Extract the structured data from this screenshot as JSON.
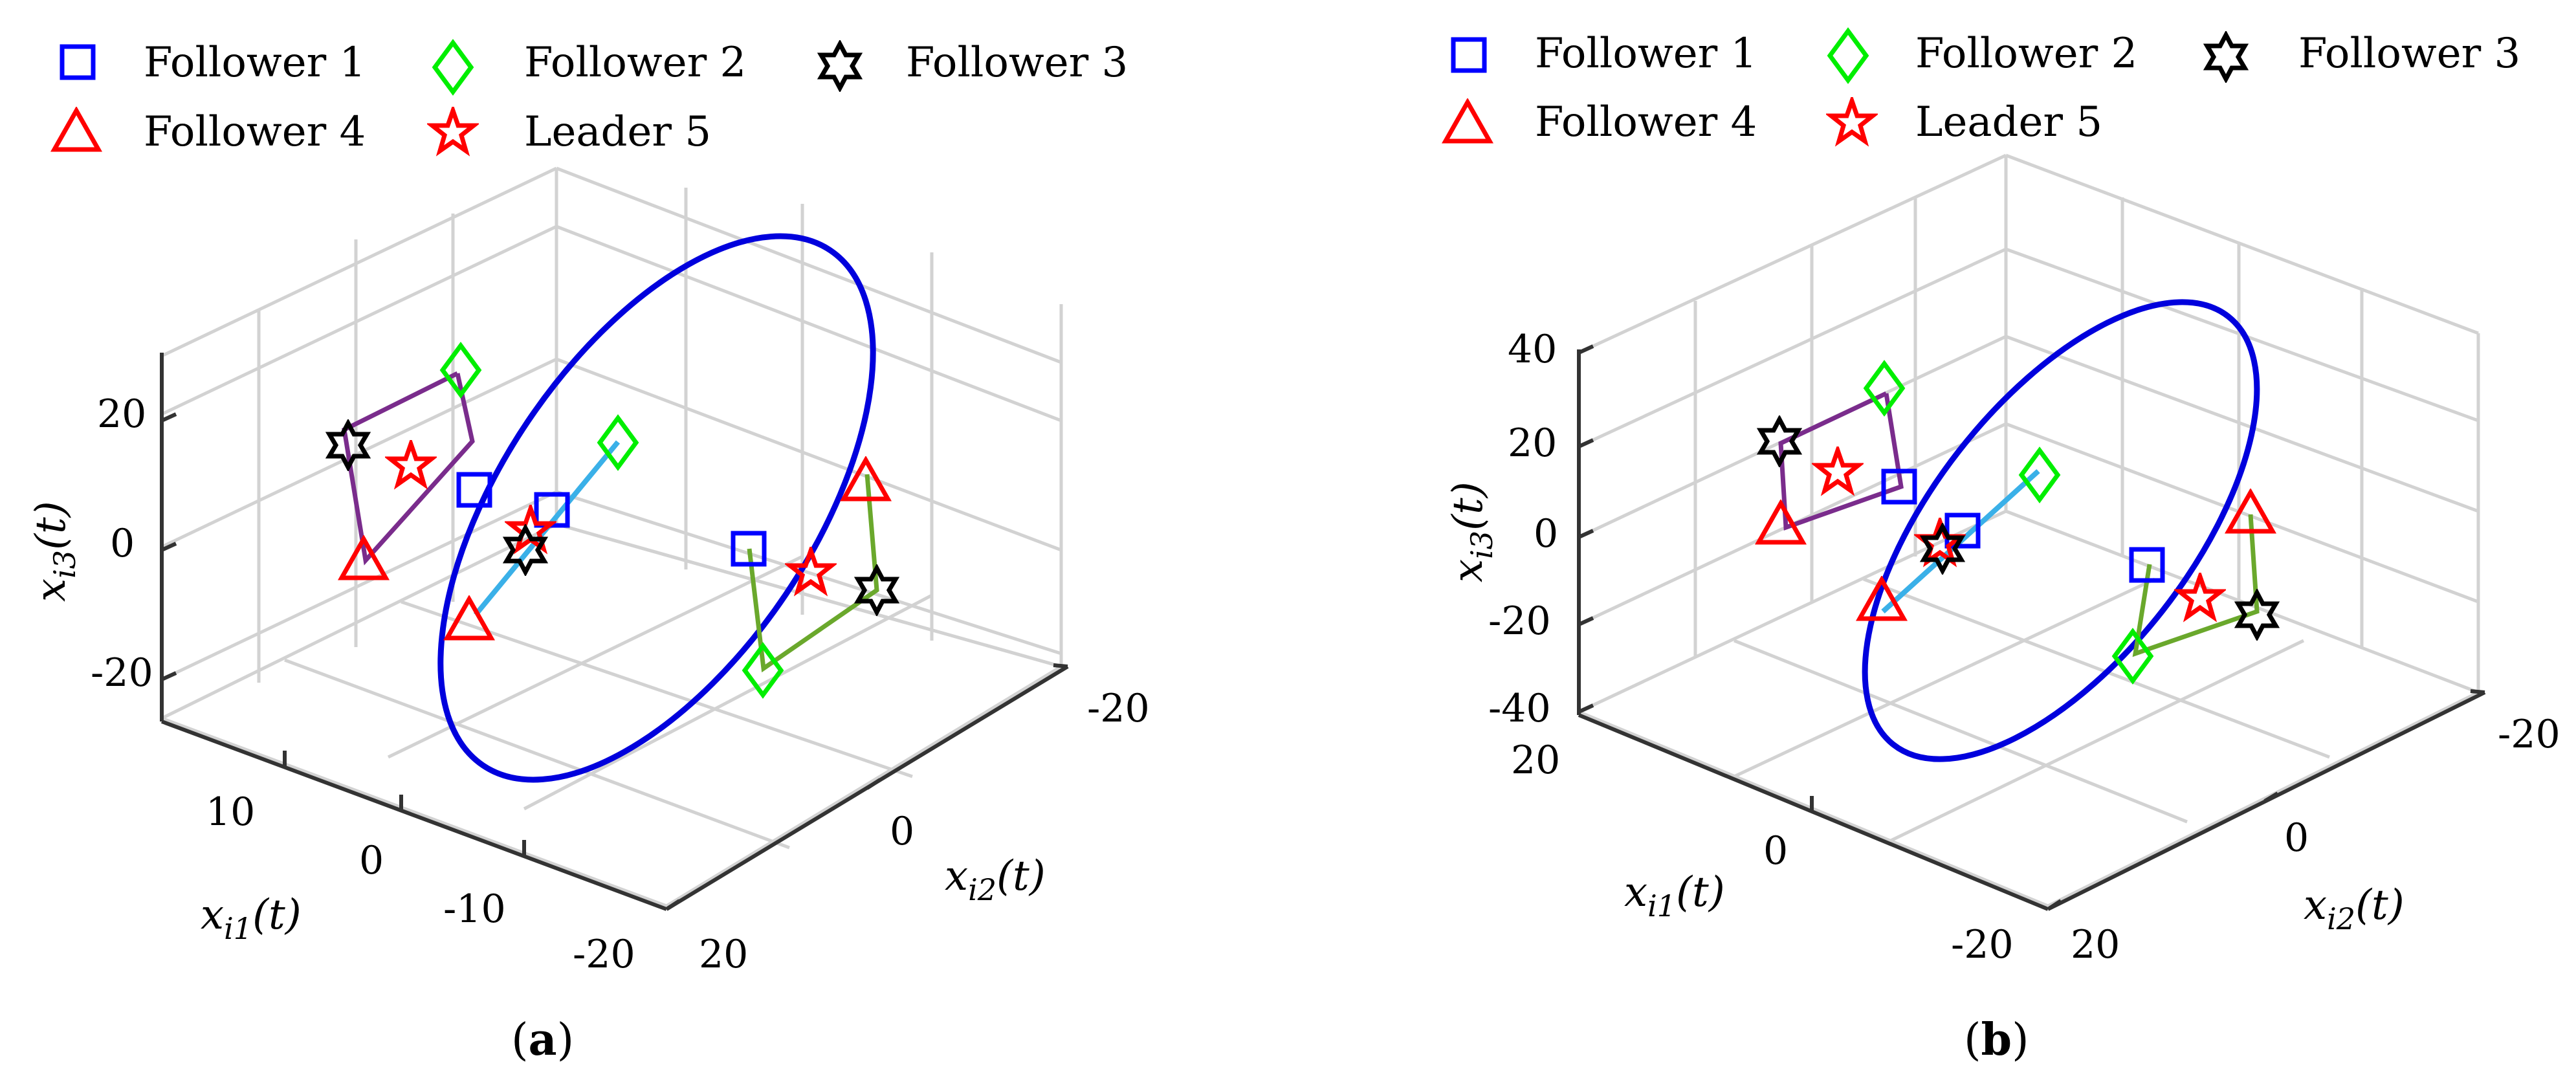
{
  "chart_data": [
    {
      "panel": "(a)",
      "type": "scatter",
      "subtype": "3d-line-scatter",
      "title": "",
      "axes": {
        "x_label": "x_i1(t)",
        "y_label": "x_i2(t)",
        "z_label": "x_i3(t)",
        "x_ticks": [
          "10",
          "0",
          "-10",
          "-20"
        ],
        "y_ticks": [
          "-20",
          "0",
          "20"
        ],
        "z_ticks": [
          "20",
          "0",
          "-20"
        ],
        "grid": true
      },
      "legend": {
        "placement": "top",
        "entries": [
          {
            "label": "Follower 1",
            "marker": "square",
            "color": "#0000ff"
          },
          {
            "label": "Follower 2",
            "marker": "diamond",
            "color": "#00ee00"
          },
          {
            "label": "Follower 3",
            "marker": "hexagram",
            "color": "#000000"
          },
          {
            "label": "Follower 4",
            "marker": "triangle",
            "color": "#ff0000"
          },
          {
            "label": "Leader 5",
            "marker": "pentagram",
            "color": "#ff0000"
          }
        ]
      },
      "series": [
        {
          "name": "leader trajectory",
          "kind": "ellipse",
          "color": "#0000dd"
        },
        {
          "name": "formation-left",
          "color": "#7a2c8c"
        },
        {
          "name": "formation-center",
          "color": "#3ab0e8"
        },
        {
          "name": "formation-right",
          "color": "#6aa82c"
        }
      ]
    },
    {
      "panel": "(b)",
      "type": "scatter",
      "subtype": "3d-line-scatter",
      "title": "",
      "axes": {
        "x_label": "x_i1(t)",
        "y_label": "x_i2(t)",
        "z_label": "x_i3(t)",
        "x_ticks": [
          "20",
          "0",
          "-20"
        ],
        "y_ticks": [
          "-20",
          "0",
          "20"
        ],
        "z_ticks": [
          "40",
          "20",
          "0",
          "-20",
          "-40"
        ],
        "grid": true
      },
      "legend": {
        "placement": "top",
        "entries": [
          {
            "label": "Follower 1",
            "marker": "square",
            "color": "#0000ff"
          },
          {
            "label": "Follower 2",
            "marker": "diamond",
            "color": "#00ee00"
          },
          {
            "label": "Follower 3",
            "marker": "hexagram",
            "color": "#000000"
          },
          {
            "label": "Follower 4",
            "marker": "triangle",
            "color": "#ff0000"
          },
          {
            "label": "Leader 5",
            "marker": "pentagram",
            "color": "#ff0000"
          }
        ]
      },
      "series": [
        {
          "name": "leader trajectory",
          "kind": "ellipse",
          "color": "#0000dd"
        },
        {
          "name": "formation-left",
          "color": "#7a2c8c"
        },
        {
          "name": "formation-center",
          "color": "#3ab0e8"
        },
        {
          "name": "formation-right",
          "color": "#6aa82c"
        }
      ]
    }
  ],
  "labels": {
    "legend": [
      "Follower 1",
      "Follower 2",
      "Follower 3",
      "Follower 4",
      "Leader 5"
    ],
    "axis_x_main": "x",
    "axis_x_sub": "i1",
    "axis_y_sub": "i2",
    "axis_z_sub": "i3",
    "axis_paren": "(t)",
    "caption_a": "a",
    "caption_b": "b",
    "a_x_ticks": [
      "10",
      "0",
      "-10",
      "-20"
    ],
    "a_y_ticks": [
      "-20",
      "0",
      "20"
    ],
    "a_z_ticks": [
      "20",
      "0",
      "-20"
    ],
    "b_x_ticks": [
      "20",
      "0",
      "-20"
    ],
    "b_y_ticks": [
      "-20",
      "0",
      "20"
    ],
    "b_z_ticks": [
      "40",
      "20",
      "0",
      "-20",
      "-40"
    ]
  }
}
